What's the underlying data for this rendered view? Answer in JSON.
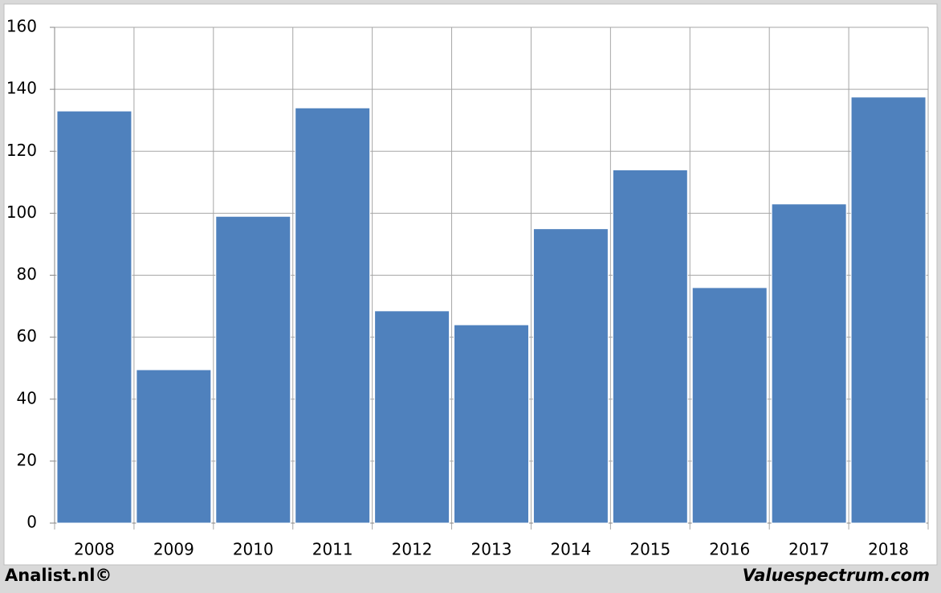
{
  "chart_data": {
    "type": "bar",
    "categories": [
      "2008",
      "2009",
      "2010",
      "2011",
      "2012",
      "2013",
      "2014",
      "2015",
      "2016",
      "2017",
      "2018"
    ],
    "values": [
      133,
      49.5,
      99,
      134,
      68.5,
      64,
      95,
      114,
      76,
      103,
      137.5
    ],
    "color": "#4f81bd",
    "ylim": [
      0,
      160
    ],
    "yticks": [
      0,
      20,
      40,
      60,
      80,
      100,
      120,
      140,
      160
    ],
    "grid": true,
    "footer_left": "Analist.nl©",
    "footer_right": "Valuespectrum.com"
  }
}
